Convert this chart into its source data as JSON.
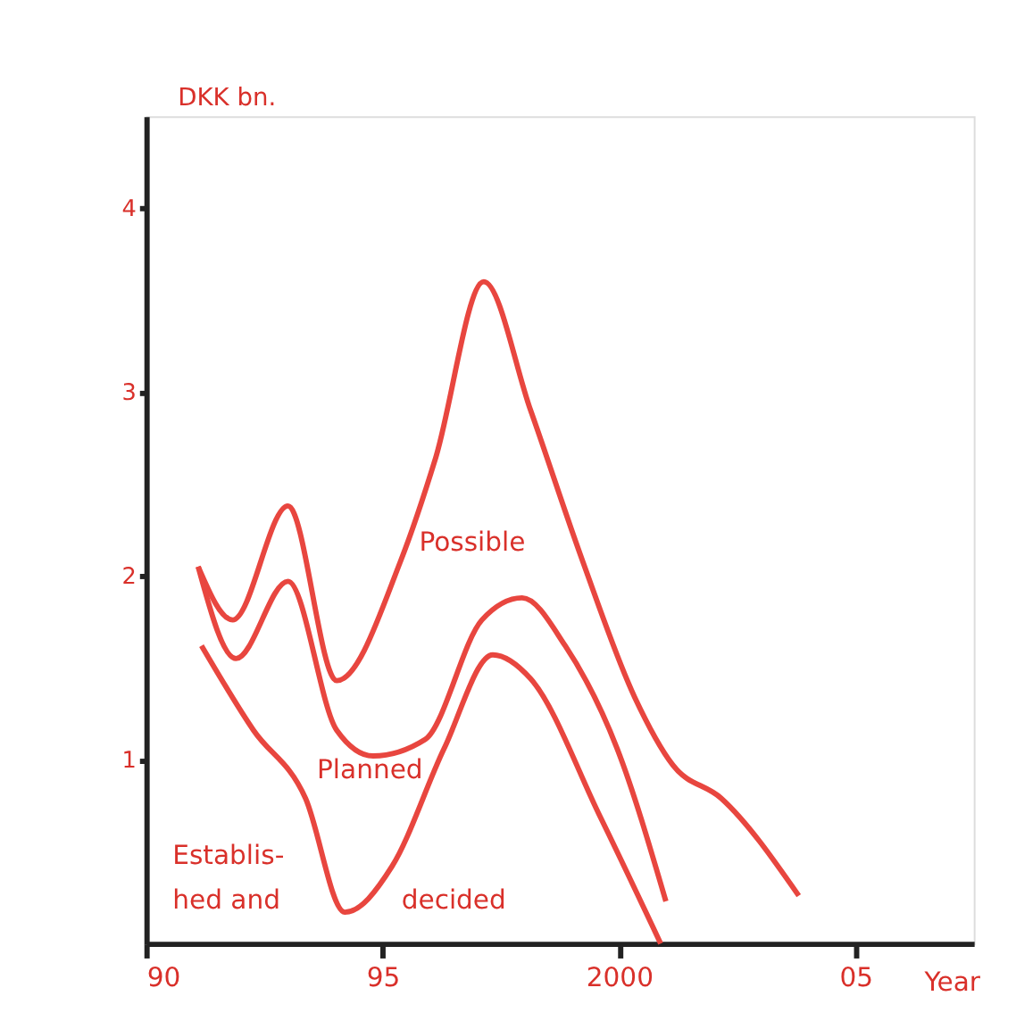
{
  "chart_data": {
    "type": "line",
    "xlabel": "Year",
    "ylabel": "DKK bn.",
    "xlim": [
      1990,
      2007.5
    ],
    "ylim": [
      0,
      4.5
    ],
    "xticks": [
      {
        "value": 1990,
        "label": "90"
      },
      {
        "value": 1995,
        "label": "95"
      },
      2000,
      {
        "value": 2005,
        "label": "05"
      }
    ],
    "yticks": [
      1,
      2,
      3,
      4
    ],
    "grid": false,
    "legend": false,
    "marker": "none",
    "line_style": "solid",
    "series": [
      {
        "name": "Possible",
        "color": "#e8463f",
        "x": [
          1991.1,
          1991.83,
          1993.0,
          1994.03,
          1995.38,
          1996.12,
          1997.14,
          1998.13,
          1999.23,
          2000.33,
          2001.14,
          2002.16,
          2003.8
        ],
        "values": [
          2.05,
          1.76,
          2.38,
          1.43,
          2.08,
          2.64,
          3.6,
          2.9,
          2.08,
          1.34,
          0.97,
          0.79,
          0.26
        ]
      },
      {
        "name": "Planned",
        "color": "#e8463f",
        "x": [
          1991.1,
          1991.9,
          1993.0,
          1994.03,
          1994.8,
          1995.9,
          1997.1,
          1997.95,
          1998.86,
          1999.96,
          2000.99
        ],
        "values": [
          2.05,
          1.55,
          1.97,
          1.16,
          1.02,
          1.11,
          1.76,
          1.88,
          1.62,
          1.06,
          0.23
        ]
      },
      {
        "name": "Establis- hed and decided",
        "color": "#e8463f",
        "x": [
          1991.17,
          1992.27,
          1993.37,
          1994.2,
          1995.2,
          1996.3,
          1997.33,
          1998.13,
          1999.6,
          2000.88
        ],
        "values": [
          1.62,
          1.16,
          0.79,
          0.17,
          0.42,
          1.06,
          1.57,
          1.44,
          0.69,
          0.0
        ]
      }
    ]
  }
}
